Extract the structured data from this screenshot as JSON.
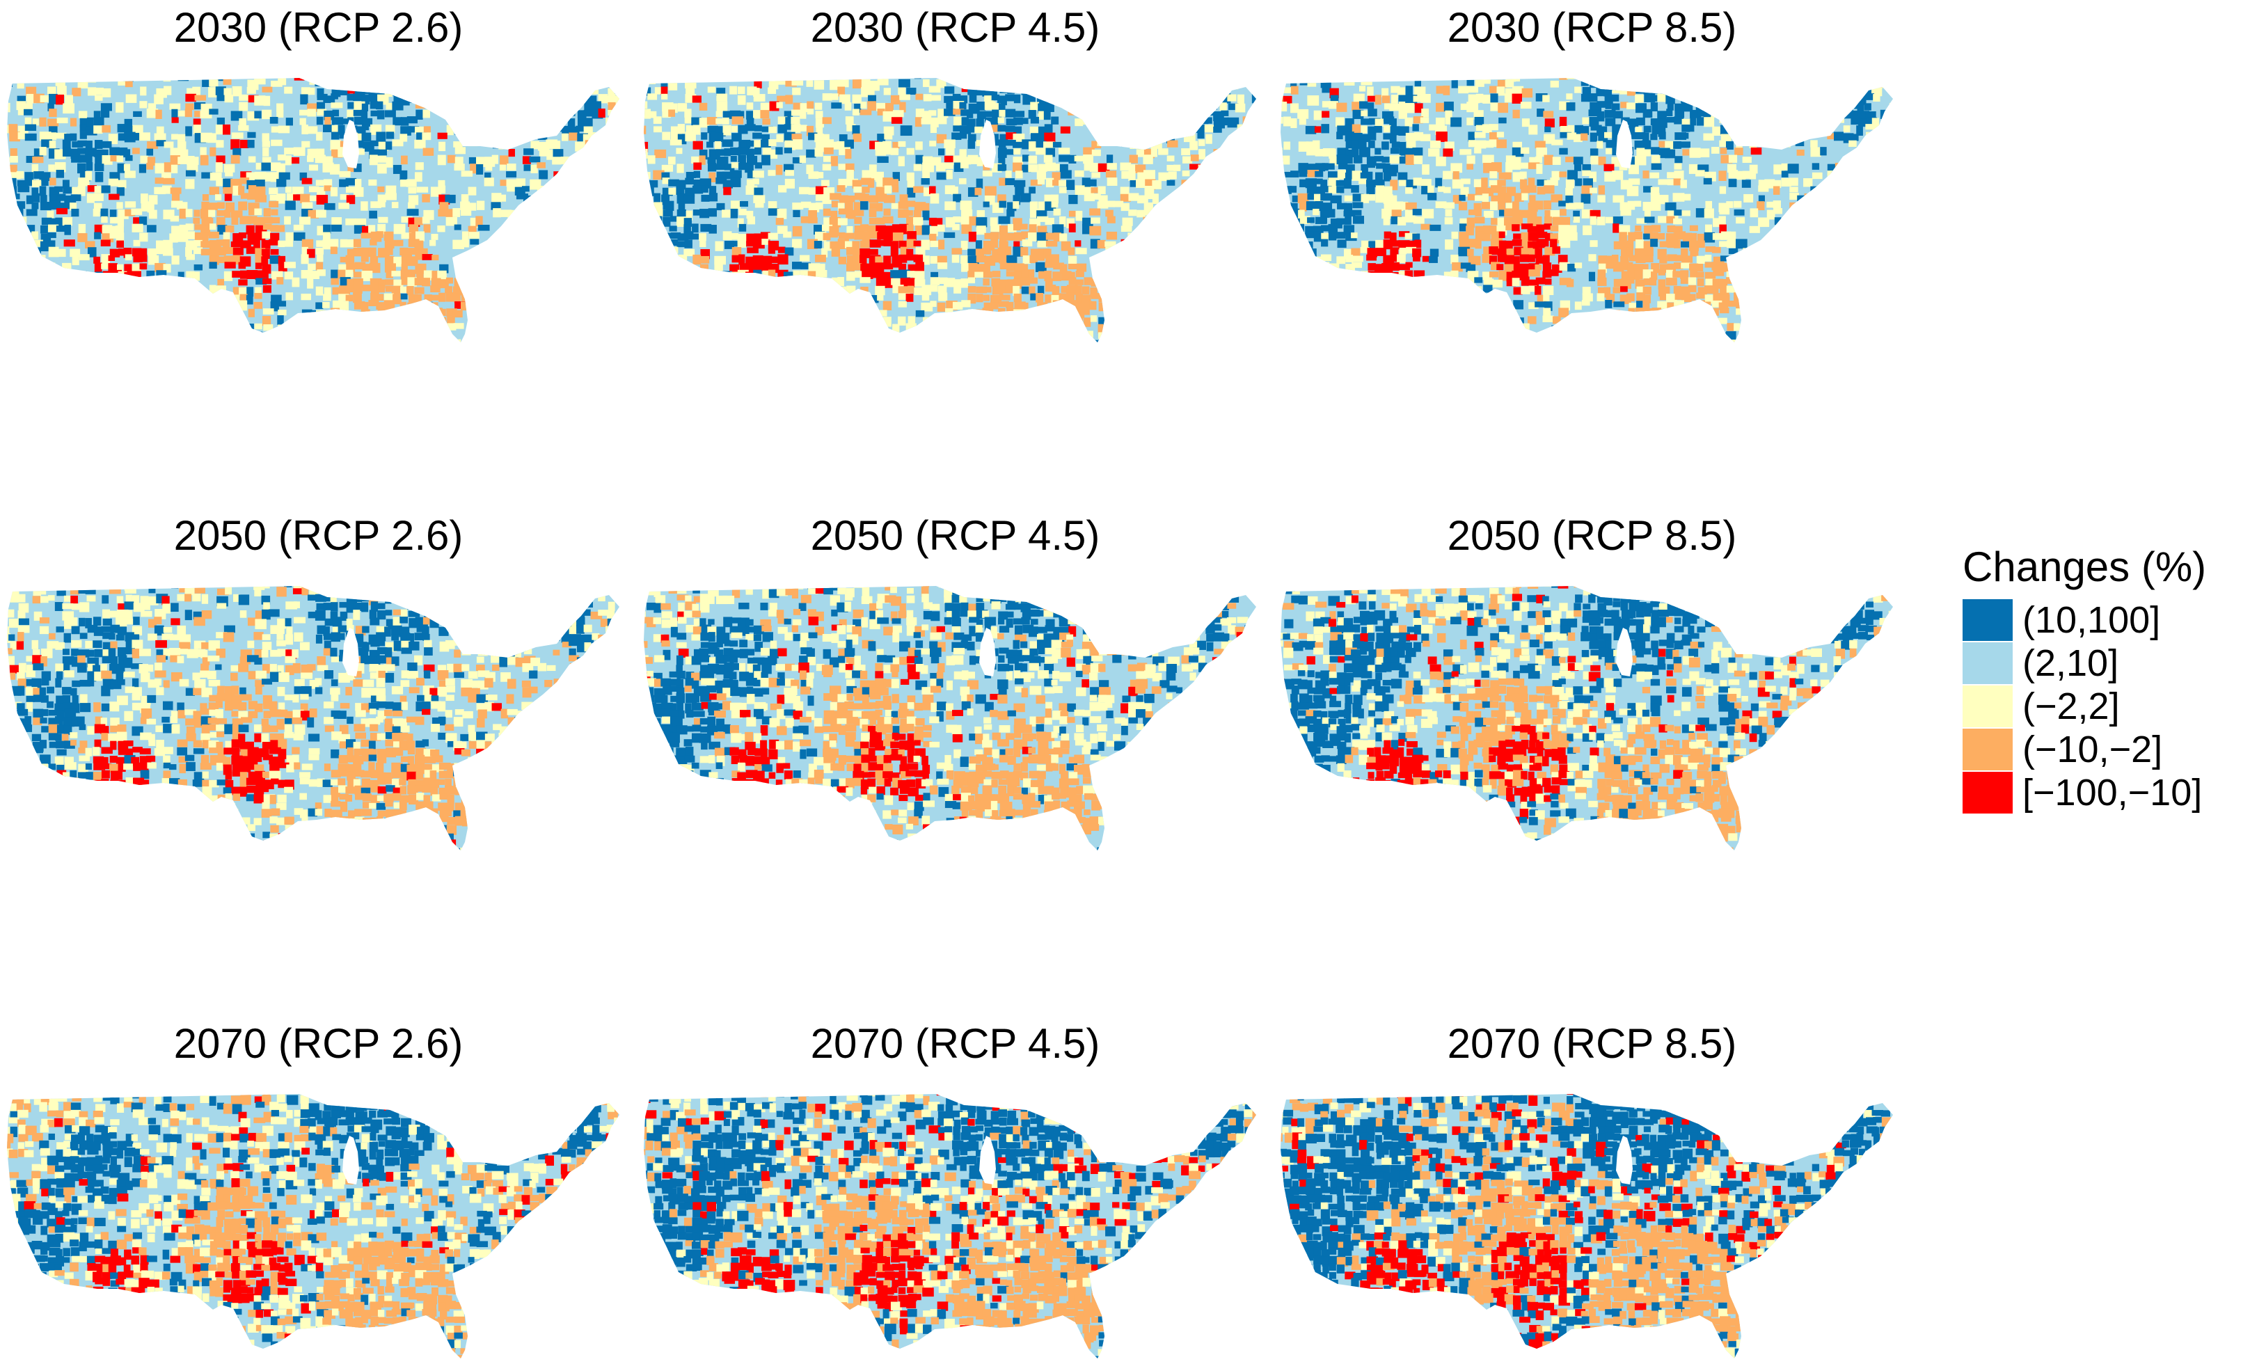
{
  "colors": {
    "c10_100": "#0570b0",
    "c2_10": "#a6d8ea",
    "cm2_2": "#ffffbf",
    "cm10_m2": "#fdae61",
    "cm100_m10": "#ff0000"
  },
  "legend": {
    "title": "Changes (%)",
    "items": [
      {
        "label": "(10,100]",
        "color": "#0570b0"
      },
      {
        "label": "(2,10]",
        "color": "#a6d8ea"
      },
      {
        "label": "(−2,2]",
        "color": "#ffffbf"
      },
      {
        "label": "(−10,−2]",
        "color": "#fdae61"
      },
      {
        "label": "[−100,−10]",
        "color": "#ff0000"
      }
    ]
  },
  "panels": [
    {
      "title": "2030 (RCP 2.6)",
      "mix": [
        0.07,
        0.55,
        0.3,
        0.06,
        0.02
      ]
    },
    {
      "title": "2030 (RCP 4.5)",
      "mix": [
        0.08,
        0.52,
        0.32,
        0.06,
        0.02
      ]
    },
    {
      "title": "2030 (RCP 8.5)",
      "mix": [
        0.08,
        0.54,
        0.3,
        0.06,
        0.02
      ]
    },
    {
      "title": "2050 (RCP 2.6)",
      "mix": [
        0.09,
        0.5,
        0.26,
        0.12,
        0.03
      ]
    },
    {
      "title": "2050 (RCP 4.5)",
      "mix": [
        0.11,
        0.5,
        0.24,
        0.12,
        0.03
      ]
    },
    {
      "title": "2050 (RCP 8.5)",
      "mix": [
        0.14,
        0.48,
        0.22,
        0.12,
        0.04
      ]
    },
    {
      "title": "2070 (RCP 2.6)",
      "mix": [
        0.12,
        0.46,
        0.24,
        0.14,
        0.04
      ]
    },
    {
      "title": "2070 (RCP 4.5)",
      "mix": [
        0.22,
        0.38,
        0.18,
        0.14,
        0.08
      ]
    },
    {
      "title": "2070 (RCP 8.5)",
      "mix": [
        0.3,
        0.32,
        0.12,
        0.14,
        0.12
      ]
    }
  ]
}
